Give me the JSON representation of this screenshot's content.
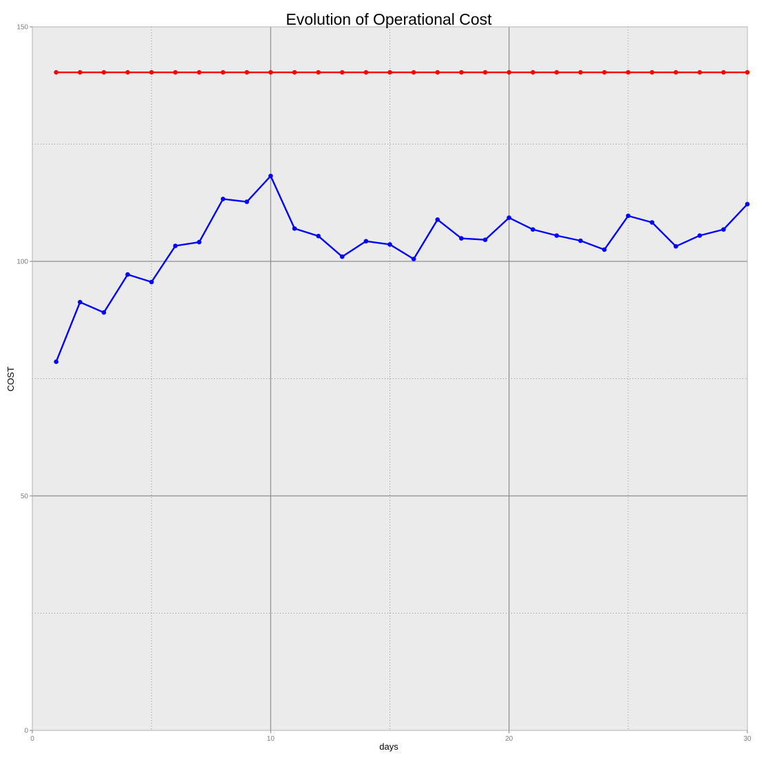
{
  "chart_data": {
    "type": "line",
    "title": "Evolution of Operational Cost",
    "xlabel": "days",
    "ylabel": "COST",
    "xlim": [
      0,
      30
    ],
    "ylim": [
      0,
      150
    ],
    "x_ticks": [
      0,
      10,
      20,
      30
    ],
    "y_ticks": [
      0,
      50,
      100,
      150
    ],
    "x_ticks_minor": [
      5,
      15,
      25
    ],
    "y_ticks_minor": [
      25,
      75,
      125
    ],
    "grid": true,
    "legend": "none",
    "x": [
      1,
      2,
      3,
      4,
      5,
      6,
      7,
      8,
      9,
      10,
      11,
      12,
      13,
      14,
      15,
      16,
      17,
      18,
      19,
      20,
      21,
      22,
      23,
      24,
      25,
      26,
      27,
      28,
      29,
      30
    ],
    "series": [
      {
        "color": "#ff0000",
        "values": [
          140.3,
          140.3,
          140.3,
          140.3,
          140.3,
          140.3,
          140.3,
          140.3,
          140.3,
          140.3,
          140.3,
          140.3,
          140.3,
          140.3,
          140.3,
          140.3,
          140.3,
          140.3,
          140.3,
          140.3,
          140.3,
          140.3,
          140.3,
          140.3,
          140.3,
          140.3,
          140.3,
          140.3,
          140.3,
          140.3
        ]
      },
      {
        "color": "#0000ff",
        "values": [
          78.6,
          91.3,
          89.1,
          97.2,
          95.6,
          103.3,
          104.1,
          113.3,
          112.7,
          118.2,
          107.0,
          105.4,
          101.0,
          104.3,
          103.6,
          100.5,
          108.9,
          104.9,
          104.6,
          109.3,
          106.8,
          105.5,
          104.4,
          102.5,
          109.7,
          108.3,
          103.2,
          105.5,
          106.8,
          112.2
        ]
      }
    ],
    "colors": {
      "plot_background": "#ebebeb",
      "major_grid": "#8c8c8c",
      "minor_grid": "#8c8c8c",
      "frame": "#b3b3b3"
    }
  }
}
